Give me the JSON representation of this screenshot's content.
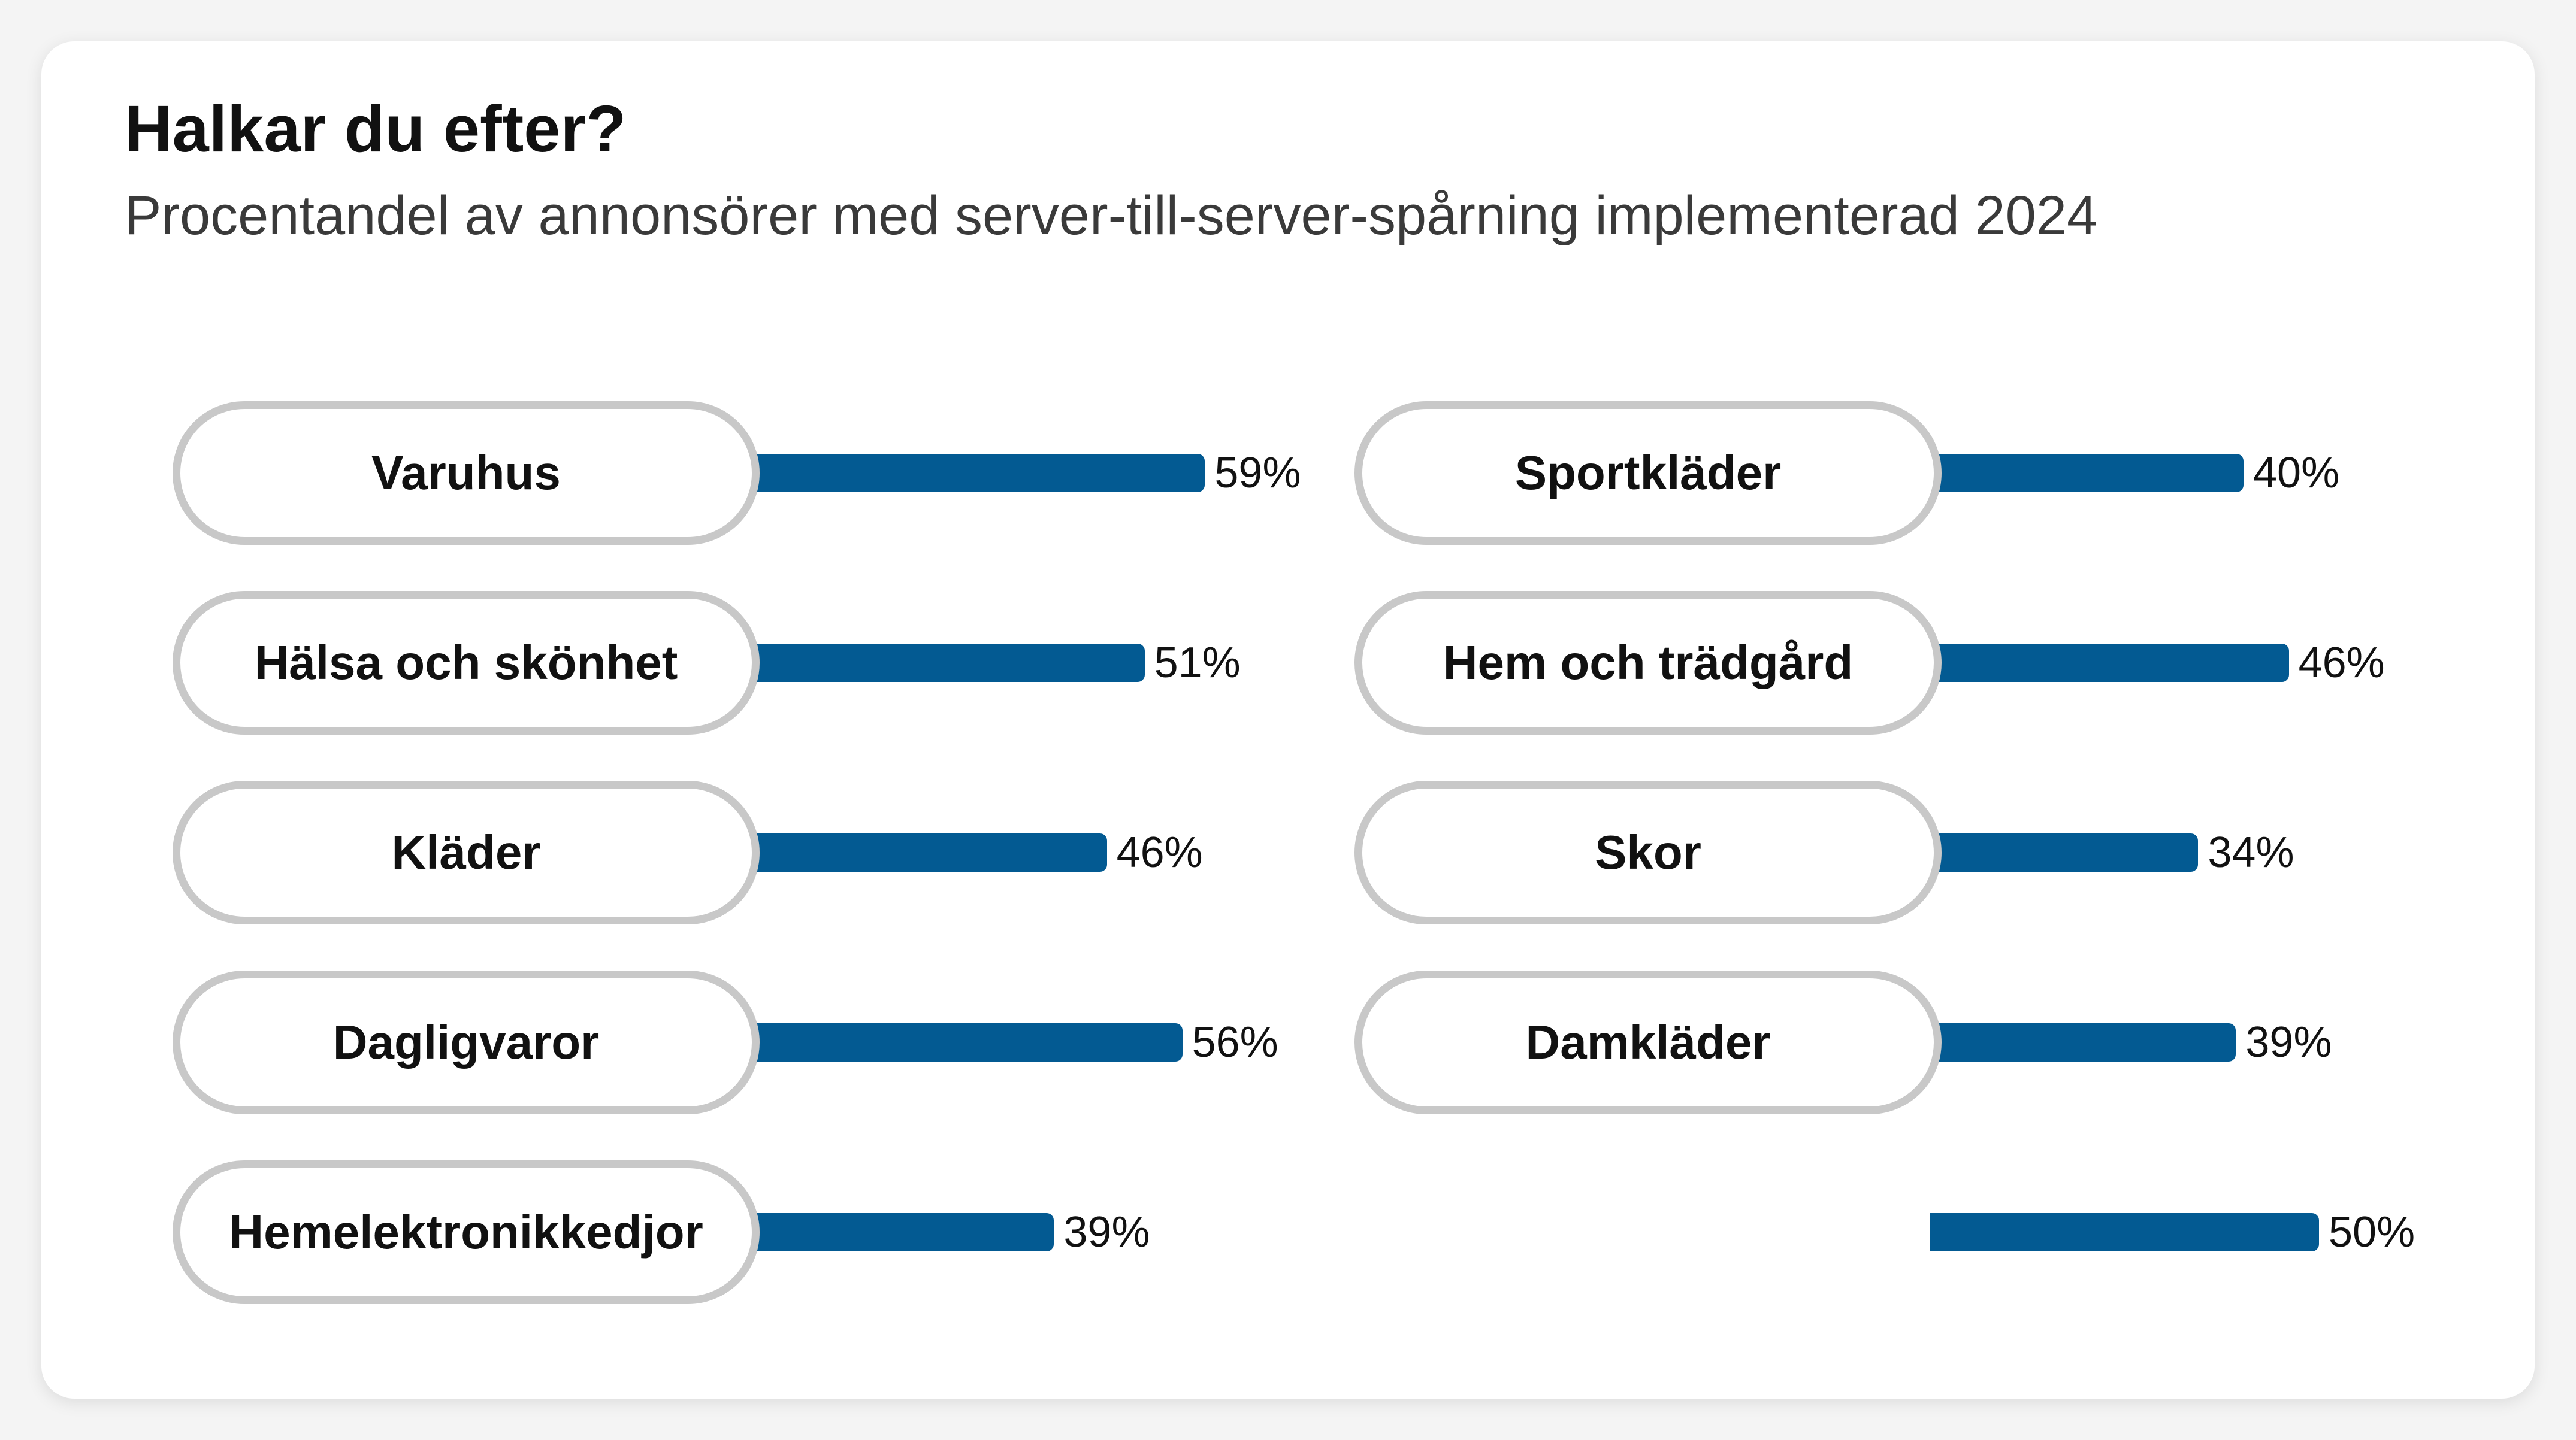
{
  "chart_data": {
    "type": "bar",
    "orientation": "horizontal",
    "title": "Halkar du efter?",
    "subtitle": "Procentandel av annonsörer med server-till-server-spårning implementerad 2024",
    "unit": "%",
    "ylim": [
      0,
      100
    ],
    "grid": false,
    "columns": [
      {
        "items": [
          {
            "label": "Varuhus",
            "value": 59,
            "display": "59%"
          },
          {
            "label": "Hälsa och skönhet",
            "value": 51,
            "display": "51%"
          },
          {
            "label": "Kläder",
            "value": 46,
            "display": "46%"
          },
          {
            "label": "Dagligvaror",
            "value": 56,
            "display": "56%"
          },
          {
            "label": "Hemelektronikkedjor",
            "value": 39,
            "display": "39%"
          }
        ]
      },
      {
        "items": [
          {
            "label": "Sportkläder",
            "value": 40,
            "display": "40%"
          },
          {
            "label": "Hem och trädgård",
            "value": 46,
            "display": "46%"
          },
          {
            "label": "Skor",
            "value": 34,
            "display": "34%"
          },
          {
            "label": "Damkläder",
            "value": 39,
            "display": "39%"
          },
          {
            "label": "",
            "value": 50,
            "display": "50%"
          }
        ]
      }
    ],
    "colors": {
      "bar": "#035a92",
      "pill_border": "#c8c8c8",
      "text": "#111111"
    }
  }
}
